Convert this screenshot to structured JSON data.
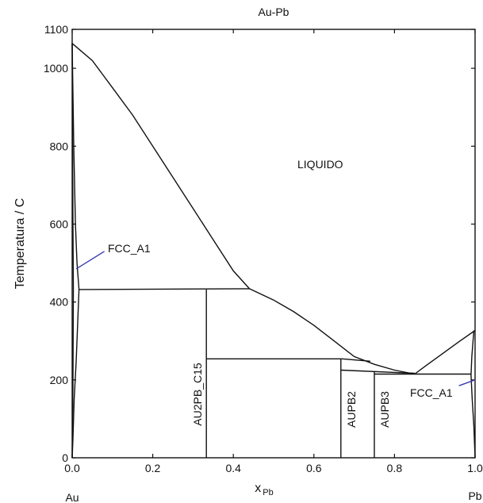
{
  "chart_data": {
    "type": "line",
    "title": "Au-Pb",
    "ylabel": "Temperatura / C",
    "xlabel_main": "x",
    "xlabel_sub": "Pb",
    "xlim": [
      0,
      1
    ],
    "ylim": [
      0,
      1100
    ],
    "x_ticks": [
      0,
      0.2,
      0.4,
      0.6,
      0.8,
      1
    ],
    "x_tick_labels": [
      "0.0",
      "0.2",
      "0.4",
      "0.6",
      "0.8",
      "1.0"
    ],
    "y_ticks": [
      0,
      200,
      400,
      600,
      800,
      1000,
      1100
    ],
    "y_tick_labels": [
      "0",
      "200",
      "400",
      "600",
      "800",
      "1000",
      "1100"
    ],
    "end_labels": {
      "left": "Au",
      "right": "Pb"
    },
    "phase_labels": {
      "liquid": "LIQUIDO",
      "fcc_left": "FCC_A1",
      "au2pb": "AU2PB_C15",
      "aupb2": "AUPB2",
      "aupb3": "AUPB3",
      "fcc_right": "FCC_A1"
    },
    "series": [
      {
        "values": [
          [
            0,
            1064
          ],
          [
            0.05,
            1020
          ],
          [
            0.1,
            950
          ],
          [
            0.15,
            880
          ],
          [
            0.2,
            800
          ],
          [
            0.25,
            720
          ],
          [
            0.3,
            640
          ],
          [
            0.35,
            560
          ],
          [
            0.4,
            480
          ],
          [
            0.44,
            434
          ]
        ]
      },
      {
        "values": [
          [
            0.44,
            434
          ],
          [
            0.5,
            405
          ],
          [
            0.55,
            375
          ],
          [
            0.6,
            340
          ],
          [
            0.65,
            300
          ],
          [
            0.7,
            260
          ],
          [
            0.75,
            240
          ],
          [
            0.8,
            225
          ],
          [
            0.85,
            215
          ]
        ]
      },
      {
        "values": [
          [
            0.85,
            215
          ],
          [
            0.88,
            238
          ],
          [
            0.92,
            268
          ],
          [
            0.96,
            298
          ],
          [
            1.0,
            327
          ]
        ]
      },
      {
        "values": [
          [
            0,
            1064
          ],
          [
            0.004,
            800
          ],
          [
            0.008,
            600
          ],
          [
            0.012,
            500
          ],
          [
            0.017,
            432
          ]
        ]
      },
      {
        "values": [
          [
            0.017,
            432
          ],
          [
            0.01,
            250
          ],
          [
            0.005,
            150
          ],
          [
            0.002,
            50
          ],
          [
            0,
            0
          ]
        ]
      },
      {
        "values": [
          [
            0,
            1064
          ],
          [
            0.001,
            800
          ],
          [
            0.002,
            600
          ],
          [
            0.003,
            432
          ],
          [
            0.002,
            200
          ],
          [
            0,
            0
          ]
        ]
      },
      {
        "values": [
          [
            0.997,
            327
          ],
          [
            0.992,
            260
          ],
          [
            0.99,
            212
          ],
          [
            0.993,
            150
          ],
          [
            0.997,
            80
          ],
          [
            1.0,
            0
          ]
        ]
      },
      {
        "values": [
          [
            0.017,
            432
          ],
          [
            0.44,
            434
          ]
        ]
      },
      {
        "values": [
          [
            0.333,
            432
          ],
          [
            0.333,
            0
          ]
        ]
      },
      {
        "values": [
          [
            0.333,
            254
          ],
          [
            0.67,
            254
          ],
          [
            0.74,
            248
          ]
        ]
      },
      {
        "values": [
          [
            0.667,
            254
          ],
          [
            0.667,
            0
          ]
        ]
      },
      {
        "values": [
          [
            0.667,
            225
          ],
          [
            0.85,
            217
          ]
        ]
      },
      {
        "values": [
          [
            0.75,
            220
          ],
          [
            0.75,
            0
          ]
        ]
      },
      {
        "values": [
          [
            0.75,
            215
          ],
          [
            0.99,
            215
          ]
        ]
      }
    ],
    "pointers": [
      {
        "from": [
          0.08,
          530
        ],
        "to": [
          0.01,
          485
        ]
      },
      {
        "from": [
          0.96,
          185
        ],
        "to": [
          1.0,
          200
        ]
      }
    ]
  }
}
